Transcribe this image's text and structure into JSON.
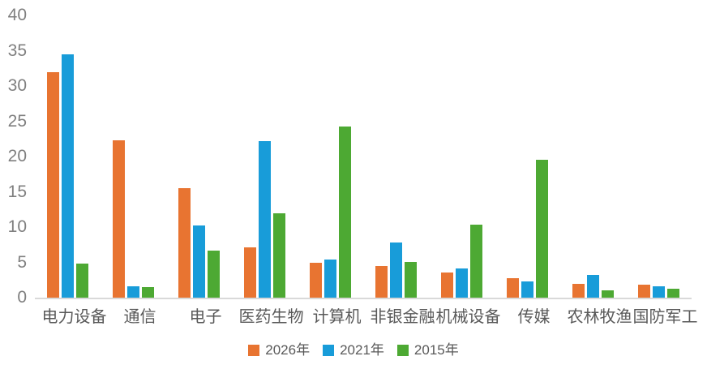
{
  "chart_data": {
    "type": "bar",
    "title": "",
    "categories": [
      "电力设备",
      "通信",
      "电子",
      "医药生物",
      "计算机",
      "非银金融",
      "机械设备",
      "传媒",
      "农林牧渔",
      "国防军工"
    ],
    "series": [
      {
        "name": "2026年",
        "color": "#E87431",
        "values": [
          32.0,
          22.3,
          15.5,
          7.1,
          4.9,
          4.5,
          3.6,
          2.8,
          2.0,
          1.8
        ]
      },
      {
        "name": "2021年",
        "color": "#189CD9",
        "values": [
          34.5,
          1.6,
          10.2,
          22.2,
          5.4,
          7.8,
          4.1,
          2.3,
          3.2,
          1.6
        ]
      },
      {
        "name": "2015年",
        "color": "#4DA933",
        "values": [
          4.8,
          1.5,
          6.7,
          12.0,
          24.3,
          5.1,
          10.4,
          19.5,
          1.0,
          1.3
        ]
      }
    ],
    "xlabel": "",
    "ylabel": "",
    "ylim": [
      0,
      40
    ],
    "yticks": [
      40,
      35,
      30,
      25,
      20,
      15,
      10,
      5,
      0
    ],
    "grid": false,
    "legend_position": "bottom"
  },
  "colors": {
    "background": "#FFFFFF",
    "axis_line": "#D9D9D9",
    "ytick_label": "#7F7F7F",
    "category_label": "#595959",
    "legend_label": "#595959"
  }
}
